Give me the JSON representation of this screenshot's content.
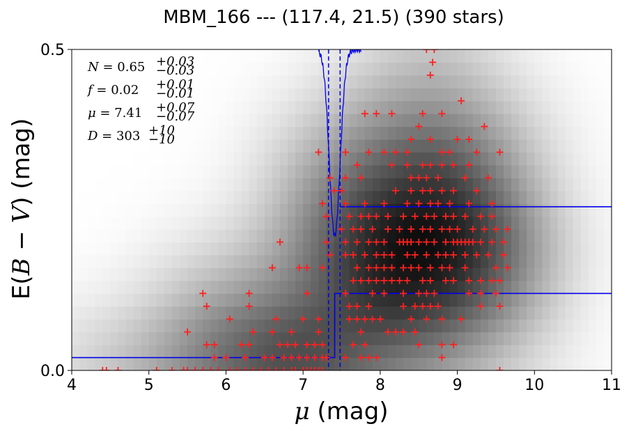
{
  "chart_data": {
    "type": "scatter",
    "title": "MBM_166 --- (117.4, 21.5) (390 stars)",
    "xlabel": "μ (mag)",
    "ylabel": "E(B − V) (mag)",
    "xlim": [
      4,
      11
    ],
    "ylim": [
      0,
      0.5
    ],
    "xticks": [
      "4",
      "5",
      "6",
      "7",
      "8",
      "9",
      "10",
      "11"
    ],
    "yticks": [
      "0.0",
      "0.5"
    ],
    "annotations": [
      {
        "label": "N",
        "value": "0.65",
        "plus": "+0.03",
        "minus": "−0.03"
      },
      {
        "label": "f",
        "value": "0.02",
        "plus": "+0.01",
        "minus": "−0.01"
      },
      {
        "label": "μ",
        "value": "7.41",
        "plus": "+0.07",
        "minus": "−0.07"
      },
      {
        "label": "D",
        "value": "303",
        "plus": "+10",
        "minus": "−10"
      }
    ],
    "colors": {
      "stars": "#ff2020",
      "model": "#0000ee",
      "background": "#000000"
    },
    "reddening_model": {
      "step_mu": 7.41,
      "mu_low": 7.33,
      "mu_high": 7.48,
      "foreground_ebv": 0.02,
      "upper_curve": [
        [
          7.48,
          0.255
        ],
        [
          11,
          0.255
        ]
      ],
      "lower_curve": [
        [
          4,
          0.02
        ],
        [
          7.41,
          0.02
        ],
        [
          7.41,
          0.12
        ],
        [
          11,
          0.12
        ]
      ]
    },
    "stars": [
      [
        4.4,
        0.0
      ],
      [
        4.45,
        0.0
      ],
      [
        4.6,
        0.0
      ],
      [
        5.1,
        0.0
      ],
      [
        5.3,
        0.0
      ],
      [
        5.45,
        0.0
      ],
      [
        5.5,
        0.0
      ],
      [
        5.6,
        0.0
      ],
      [
        5.7,
        0.0
      ],
      [
        5.8,
        0.0
      ],
      [
        5.9,
        0.0
      ],
      [
        6.05,
        0.0
      ],
      [
        6.15,
        0.0
      ],
      [
        6.25,
        0.0
      ],
      [
        6.35,
        0.0
      ],
      [
        6.45,
        0.0
      ],
      [
        6.55,
        0.0
      ],
      [
        6.65,
        0.0
      ],
      [
        6.75,
        0.0
      ],
      [
        6.85,
        0.0
      ],
      [
        6.9,
        0.0
      ],
      [
        7.0,
        0.0
      ],
      [
        7.05,
        0.0
      ],
      [
        7.1,
        0.0
      ],
      [
        7.15,
        0.0
      ],
      [
        7.2,
        0.0
      ],
      [
        7.25,
        0.0
      ],
      [
        9.55,
        0.0
      ],
      [
        5.85,
        0.02
      ],
      [
        6.0,
        0.02
      ],
      [
        6.25,
        0.02
      ],
      [
        6.5,
        0.02
      ],
      [
        6.6,
        0.02
      ],
      [
        6.75,
        0.02
      ],
      [
        6.85,
        0.02
      ],
      [
        6.95,
        0.02
      ],
      [
        7.05,
        0.02
      ],
      [
        7.15,
        0.02
      ],
      [
        7.25,
        0.02
      ],
      [
        7.3,
        0.02
      ],
      [
        7.55,
        0.02
      ],
      [
        7.75,
        0.02
      ],
      [
        7.85,
        0.02
      ],
      [
        7.95,
        0.02
      ],
      [
        8.8,
        0.02
      ],
      [
        5.75,
        0.04
      ],
      [
        5.85,
        0.04
      ],
      [
        6.2,
        0.04
      ],
      [
        6.3,
        0.04
      ],
      [
        6.7,
        0.04
      ],
      [
        6.8,
        0.04
      ],
      [
        6.9,
        0.04
      ],
      [
        7.05,
        0.04
      ],
      [
        7.15,
        0.04
      ],
      [
        7.25,
        0.04
      ],
      [
        7.65,
        0.04
      ],
      [
        7.8,
        0.04
      ],
      [
        8.5,
        0.04
      ],
      [
        8.8,
        0.04
      ],
      [
        8.95,
        0.04
      ],
      [
        5.5,
        0.06
      ],
      [
        6.35,
        0.06
      ],
      [
        6.6,
        0.06
      ],
      [
        6.85,
        0.06
      ],
      [
        7.2,
        0.06
      ],
      [
        7.75,
        0.06
      ],
      [
        8.1,
        0.06
      ],
      [
        8.2,
        0.06
      ],
      [
        8.3,
        0.06
      ],
      [
        8.45,
        0.06
      ],
      [
        6.05,
        0.08
      ],
      [
        6.65,
        0.08
      ],
      [
        7.0,
        0.08
      ],
      [
        7.2,
        0.08
      ],
      [
        7.6,
        0.08
      ],
      [
        7.7,
        0.08
      ],
      [
        7.8,
        0.08
      ],
      [
        7.9,
        0.08
      ],
      [
        8.0,
        0.08
      ],
      [
        8.4,
        0.08
      ],
      [
        8.6,
        0.08
      ],
      [
        8.8,
        0.08
      ],
      [
        9.05,
        0.08
      ],
      [
        5.75,
        0.1
      ],
      [
        6.3,
        0.1
      ],
      [
        7.6,
        0.1
      ],
      [
        7.7,
        0.1
      ],
      [
        7.85,
        0.1
      ],
      [
        8.3,
        0.1
      ],
      [
        8.45,
        0.1
      ],
      [
        8.55,
        0.1
      ],
      [
        8.65,
        0.1
      ],
      [
        8.75,
        0.1
      ],
      [
        9.3,
        0.1
      ],
      [
        9.55,
        0.1
      ],
      [
        5.7,
        0.12
      ],
      [
        6.3,
        0.12
      ],
      [
        7.05,
        0.12
      ],
      [
        7.55,
        0.12
      ],
      [
        7.9,
        0.12
      ],
      [
        8.05,
        0.12
      ],
      [
        8.3,
        0.12
      ],
      [
        8.5,
        0.12
      ],
      [
        8.6,
        0.12
      ],
      [
        8.7,
        0.12
      ],
      [
        9.15,
        0.12
      ],
      [
        9.3,
        0.12
      ],
      [
        9.5,
        0.12
      ],
      [
        7.65,
        0.14
      ],
      [
        7.75,
        0.14
      ],
      [
        7.85,
        0.14
      ],
      [
        7.95,
        0.14
      ],
      [
        8.05,
        0.14
      ],
      [
        8.15,
        0.14
      ],
      [
        8.25,
        0.14
      ],
      [
        8.35,
        0.14
      ],
      [
        8.55,
        0.14
      ],
      [
        8.65,
        0.14
      ],
      [
        8.85,
        0.14
      ],
      [
        8.95,
        0.14
      ],
      [
        9.15,
        0.14
      ],
      [
        9.3,
        0.14
      ],
      [
        9.45,
        0.14
      ],
      [
        9.55,
        0.14
      ],
      [
        6.6,
        0.16
      ],
      [
        6.95,
        0.16
      ],
      [
        7.05,
        0.16
      ],
      [
        7.25,
        0.16
      ],
      [
        7.7,
        0.16
      ],
      [
        7.85,
        0.16
      ],
      [
        7.95,
        0.16
      ],
      [
        8.05,
        0.16
      ],
      [
        8.15,
        0.16
      ],
      [
        8.3,
        0.16
      ],
      [
        8.4,
        0.16
      ],
      [
        8.5,
        0.16
      ],
      [
        8.65,
        0.16
      ],
      [
        8.8,
        0.16
      ],
      [
        8.9,
        0.16
      ],
      [
        9.1,
        0.16
      ],
      [
        9.5,
        0.16
      ],
      [
        9.65,
        0.16
      ],
      [
        7.35,
        0.18
      ],
      [
        7.55,
        0.18
      ],
      [
        7.65,
        0.18
      ],
      [
        7.8,
        0.18
      ],
      [
        7.95,
        0.18
      ],
      [
        8.05,
        0.18
      ],
      [
        8.15,
        0.18
      ],
      [
        8.35,
        0.18
      ],
      [
        8.45,
        0.18
      ],
      [
        8.6,
        0.18
      ],
      [
        8.75,
        0.18
      ],
      [
        8.85,
        0.18
      ],
      [
        8.95,
        0.18
      ],
      [
        9.1,
        0.18
      ],
      [
        9.25,
        0.18
      ],
      [
        9.4,
        0.18
      ],
      [
        9.6,
        0.18
      ],
      [
        6.7,
        0.2
      ],
      [
        7.3,
        0.2
      ],
      [
        7.55,
        0.2
      ],
      [
        7.7,
        0.2
      ],
      [
        7.85,
        0.2
      ],
      [
        7.95,
        0.2
      ],
      [
        8.05,
        0.2
      ],
      [
        8.25,
        0.2
      ],
      [
        8.3,
        0.2
      ],
      [
        8.35,
        0.2
      ],
      [
        8.4,
        0.2
      ],
      [
        8.5,
        0.2
      ],
      [
        8.6,
        0.2
      ],
      [
        8.7,
        0.2
      ],
      [
        8.85,
        0.2
      ],
      [
        8.95,
        0.2
      ],
      [
        9.0,
        0.2
      ],
      [
        9.05,
        0.2
      ],
      [
        9.1,
        0.2
      ],
      [
        9.15,
        0.2
      ],
      [
        9.2,
        0.2
      ],
      [
        9.3,
        0.2
      ],
      [
        9.45,
        0.2
      ],
      [
        9.6,
        0.2
      ],
      [
        7.5,
        0.22
      ],
      [
        7.65,
        0.22
      ],
      [
        7.75,
        0.22
      ],
      [
        7.9,
        0.22
      ],
      [
        8.1,
        0.22
      ],
      [
        8.25,
        0.22
      ],
      [
        8.4,
        0.22
      ],
      [
        8.55,
        0.22
      ],
      [
        8.65,
        0.22
      ],
      [
        8.8,
        0.22
      ],
      [
        8.9,
        0.22
      ],
      [
        9.0,
        0.22
      ],
      [
        9.2,
        0.22
      ],
      [
        9.35,
        0.22
      ],
      [
        9.5,
        0.22
      ],
      [
        9.65,
        0.22
      ],
      [
        7.3,
        0.24
      ],
      [
        7.6,
        0.24
      ],
      [
        7.75,
        0.24
      ],
      [
        7.85,
        0.24
      ],
      [
        7.95,
        0.24
      ],
      [
        8.1,
        0.24
      ],
      [
        8.3,
        0.24
      ],
      [
        8.45,
        0.24
      ],
      [
        8.6,
        0.24
      ],
      [
        8.7,
        0.24
      ],
      [
        8.85,
        0.24
      ],
      [
        8.95,
        0.24
      ],
      [
        9.1,
        0.24
      ],
      [
        9.3,
        0.24
      ],
      [
        9.45,
        0.24
      ],
      [
        7.25,
        0.26
      ],
      [
        7.55,
        0.26
      ],
      [
        7.8,
        0.26
      ],
      [
        8.05,
        0.26
      ],
      [
        8.35,
        0.26
      ],
      [
        8.5,
        0.26
      ],
      [
        8.65,
        0.26
      ],
      [
        8.75,
        0.26
      ],
      [
        8.9,
        0.26
      ],
      [
        9.15,
        0.26
      ],
      [
        9.45,
        0.26
      ],
      [
        7.4,
        0.28
      ],
      [
        7.5,
        0.28
      ],
      [
        8.2,
        0.28
      ],
      [
        8.4,
        0.28
      ],
      [
        8.55,
        0.28
      ],
      [
        8.65,
        0.28
      ],
      [
        8.8,
        0.28
      ],
      [
        8.95,
        0.28
      ],
      [
        9.25,
        0.28
      ],
      [
        7.35,
        0.3
      ],
      [
        7.55,
        0.3
      ],
      [
        7.75,
        0.3
      ],
      [
        8.4,
        0.3
      ],
      [
        8.5,
        0.3
      ],
      [
        8.6,
        0.3
      ],
      [
        8.75,
        0.3
      ],
      [
        9.1,
        0.3
      ],
      [
        9.4,
        0.3
      ],
      [
        7.7,
        0.32
      ],
      [
        8.15,
        0.32
      ],
      [
        8.35,
        0.32
      ],
      [
        8.55,
        0.32
      ],
      [
        8.65,
        0.32
      ],
      [
        8.8,
        0.32
      ],
      [
        8.95,
        0.32
      ],
      [
        9.15,
        0.32
      ],
      [
        7.2,
        0.34
      ],
      [
        7.55,
        0.34
      ],
      [
        7.85,
        0.34
      ],
      [
        8.05,
        0.34
      ],
      [
        8.2,
        0.34
      ],
      [
        8.35,
        0.34
      ],
      [
        8.8,
        0.34
      ],
      [
        8.9,
        0.34
      ],
      [
        9.25,
        0.34
      ],
      [
        9.55,
        0.34
      ],
      [
        8.4,
        0.36
      ],
      [
        8.65,
        0.36
      ],
      [
        9.0,
        0.36
      ],
      [
        9.15,
        0.36
      ],
      [
        8.5,
        0.38
      ],
      [
        9.35,
        0.38
      ],
      [
        7.8,
        0.4
      ],
      [
        7.95,
        0.4
      ],
      [
        8.15,
        0.4
      ],
      [
        8.55,
        0.4
      ],
      [
        8.8,
        0.4
      ],
      [
        9.05,
        0.42
      ],
      [
        8.65,
        0.46
      ],
      [
        8.68,
        0.48
      ],
      [
        8.6,
        0.5
      ],
      [
        8.7,
        0.5
      ]
    ]
  }
}
